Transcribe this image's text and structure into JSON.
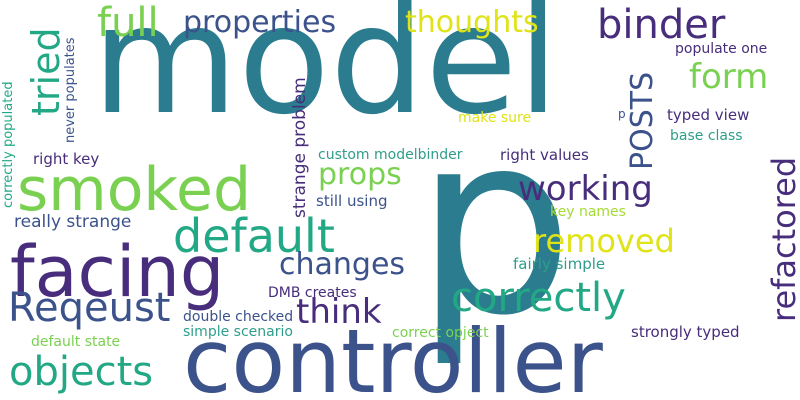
{
  "colors": {
    "background": "#ffffff",
    "teal": "#2a7c8e",
    "green": "#7ad151",
    "purple": "#472d7b",
    "navy": "#3b528b",
    "seagreen": "#22a884",
    "yellow": "#dfe318",
    "lime": "#a5db36",
    "cyan": "#2e9e8a"
  },
  "words": {
    "model": "model",
    "p": "p",
    "controller": "controller",
    "facing": "facing",
    "smoked": "smoked",
    "default": "default",
    "full": "full",
    "properties": "properties",
    "thoughts": "thoughts",
    "binder": "binder",
    "form": "form",
    "tried": "tried",
    "posts": "POSTS",
    "refactored": "refactored",
    "working": "working",
    "props": "props",
    "removed": "removed",
    "changes": "changes",
    "correctly": "correctly",
    "think": "think",
    "reqeust": "Reqeust",
    "objects": "objects",
    "populate_one": "populate one",
    "typed_view": "typed view",
    "base_class": "base class",
    "make_sure": "make sure",
    "p_small": "p",
    "right_key": "right key",
    "custom_modelbinder": "custom modelbinder",
    "right_values": "right values",
    "still_using": "still using",
    "key_names": "key names",
    "fairly_simple": "fairly simple",
    "really_strange": "really strange",
    "strange_problem": "strange problem",
    "never_populates": "never populates",
    "correctly_populated": "correctly populated",
    "dmb_creates": "DMB creates",
    "double_checked": "double checked",
    "simple_scenario": "simple scenario",
    "correct_opject": "correct opject",
    "strongly_typed": "strongly typed",
    "default_state": "default state"
  }
}
